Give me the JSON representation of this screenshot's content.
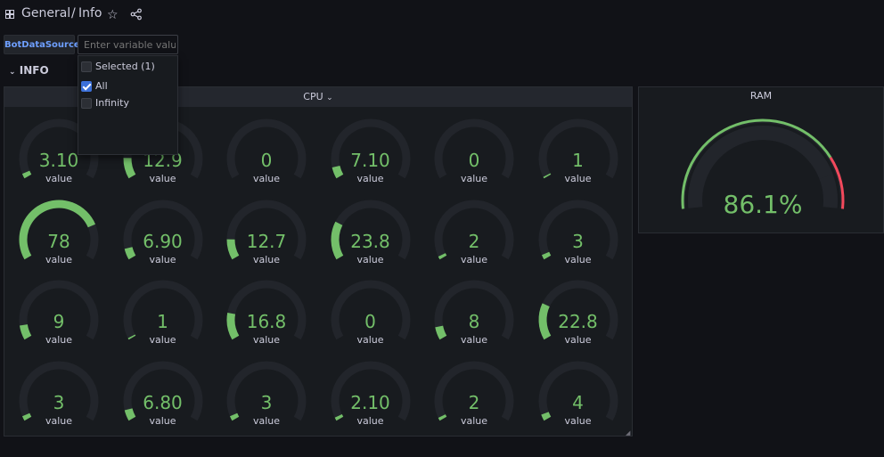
{
  "header": {
    "breadcrumb_root": "General",
    "breadcrumb_sep": "/",
    "breadcrumb_page": "Info",
    "icons": [
      "grid-icon",
      "star-icon",
      "share-icon"
    ]
  },
  "variables": {
    "label": "BotDataSource",
    "input_placeholder": "Enter variable value",
    "dropdown": [
      {
        "label": "Selected (1)",
        "checked": false
      },
      {
        "label": "All",
        "checked": true
      },
      {
        "label": "Infinity",
        "checked": false
      }
    ]
  },
  "row": {
    "title": "INFO"
  },
  "cpu": {
    "title": "CPU",
    "unit_label": "value",
    "min": 0,
    "max": 100,
    "values": [
      "3.10",
      "12.9",
      "0",
      "7.10",
      "0",
      "1",
      "78",
      "6.90",
      "12.7",
      "23.8",
      "2",
      "3",
      "9",
      "1",
      "16.8",
      "0",
      "8",
      "22.8",
      "3",
      "6.80",
      "3",
      "2.10",
      "2",
      "4"
    ]
  },
  "ram": {
    "title": "RAM",
    "value": 86.1,
    "display": "86.1%",
    "threshold": 80
  },
  "colors": {
    "gauge_ok": "#73bf69",
    "gauge_track": "#22252b",
    "gauge_crit": "#f2495c",
    "link_blue": "#6e9fff"
  }
}
